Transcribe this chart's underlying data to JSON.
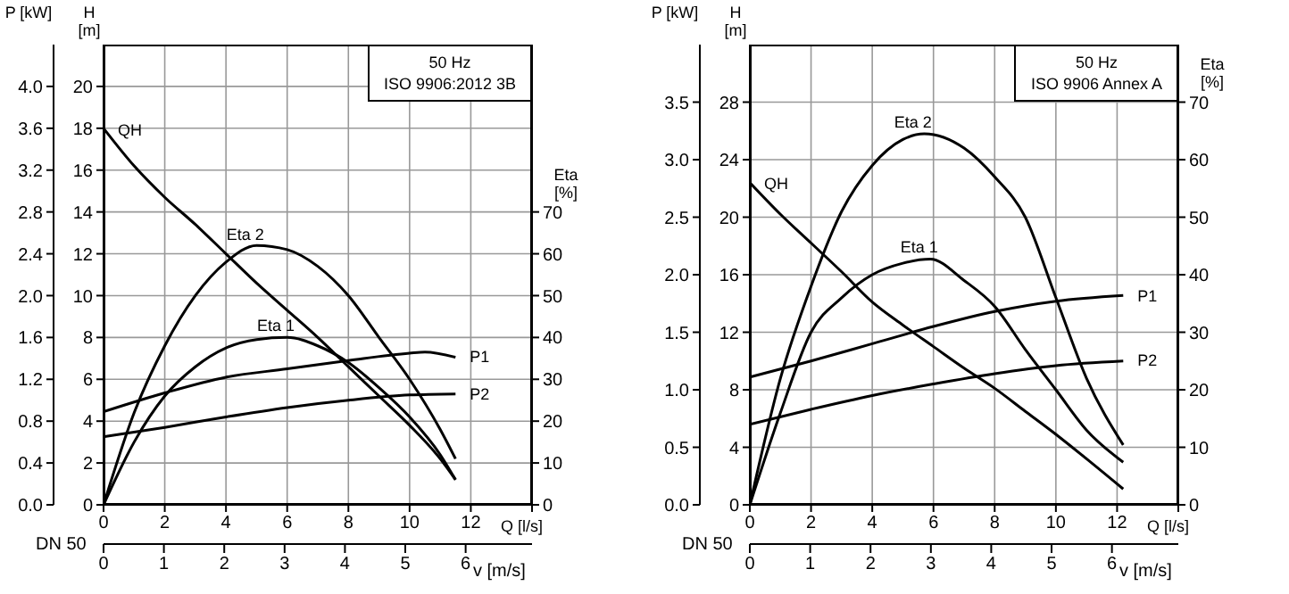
{
  "chart_data": [
    {
      "type": "line",
      "subtitle": "50 Hz",
      "annotations": [
        "ISO 9906:2012 3B",
        "DN 50"
      ],
      "xlabel": "Q [l/s]",
      "x2label": "v [m/s]",
      "ylabel": "H [m]",
      "y2label": "P [kW]",
      "y3label": "Eta [%]",
      "xlim": [
        0,
        14
      ],
      "xticks": [
        0,
        2,
        4,
        6,
        8,
        10,
        12,
        {
          "value": 14,
          "label": null
        }
      ],
      "x2lim": [
        0,
        7.1
      ],
      "x2ticks": [
        0,
        1,
        2,
        3,
        4,
        5,
        6
      ],
      "ylim": [
        0,
        22
      ],
      "yticks": [
        0,
        2,
        4,
        6,
        8,
        10,
        12,
        14,
        16,
        18,
        20
      ],
      "y2lim": [
        0,
        4.4
      ],
      "y2ticks": [
        {
          "value": 0,
          "label": "0.0"
        },
        {
          "value": 0.4,
          "label": "0.4"
        },
        {
          "value": 0.8,
          "label": "0.8"
        },
        {
          "value": 1.2,
          "label": "1.2"
        },
        {
          "value": 1.6,
          "label": "1.6"
        },
        {
          "value": 2,
          "label": "2.0"
        },
        {
          "value": 2.4,
          "label": "2.4"
        },
        {
          "value": 2.8,
          "label": "2.8"
        },
        {
          "value": 3.2,
          "label": "3.2"
        },
        {
          "value": 3.6,
          "label": "3.6"
        },
        {
          "value": 4,
          "label": "4.0"
        }
      ],
      "y3lim": [
        0,
        110
      ],
      "y3ticks": [
        0,
        10,
        20,
        30,
        40,
        50,
        60,
        70
      ],
      "grid": true,
      "series": [
        {
          "name": "QH",
          "color": "#000000",
          "axis": "y",
          "x": [
            0,
            1,
            2,
            3,
            4,
            5,
            6,
            7,
            8,
            9,
            10,
            11,
            11.5
          ],
          "values": [
            18,
            16.2,
            14.7,
            13.4,
            12,
            10.6,
            9.3,
            8,
            6.6,
            5.2,
            3.8,
            2.2,
            1.2
          ]
        },
        {
          "name": "Eta 1",
          "color": "#000000",
          "axis": "y3",
          "x": [
            0,
            1,
            2,
            3,
            4,
            5,
            6,
            7,
            8,
            9,
            10,
            11,
            11.5
          ],
          "values": [
            0,
            15,
            26,
            33,
            37.5,
            39.5,
            40,
            38,
            34,
            28,
            21,
            12,
            6
          ]
        },
        {
          "name": "Eta 2",
          "color": "#000000",
          "axis": "y3",
          "x": [
            0,
            1,
            2,
            3,
            4,
            5,
            6,
            7,
            8,
            9,
            10,
            11,
            11.5
          ],
          "values": [
            0,
            22,
            38,
            50,
            58,
            62,
            61,
            57,
            50,
            40,
            30,
            18,
            11
          ]
        },
        {
          "name": "P1",
          "color": "#000000",
          "axis": "y2",
          "x": [
            0,
            2,
            4,
            6,
            8,
            10,
            10.5,
            11.5
          ],
          "values": [
            0.89,
            1.07,
            1.22,
            1.3,
            1.38,
            1.45,
            1.46,
            1.41
          ]
        },
        {
          "name": "P2",
          "color": "#000000",
          "axis": "y2",
          "x": [
            0,
            2,
            4,
            6,
            8,
            10,
            11.5
          ],
          "values": [
            0.65,
            0.74,
            0.84,
            0.93,
            1,
            1.05,
            1.06
          ]
        }
      ]
    },
    {
      "type": "line",
      "subtitle": "50 Hz",
      "annotations": [
        "ISO 9906 Annex A",
        "DN 50"
      ],
      "xlabel": "Q [l/s]",
      "x2label": "v [m/s]",
      "ylabel": "H [m]",
      "y2label": "P [kW]",
      "y3label": "Eta [%]",
      "xlim": [
        0,
        14
      ],
      "xticks": [
        0,
        2,
        4,
        6,
        8,
        10,
        12,
        {
          "value": 14,
          "label": null
        }
      ],
      "x2lim": [
        0,
        7.1
      ],
      "x2ticks": [
        0,
        1,
        2,
        3,
        4,
        5,
        6
      ],
      "ylim": [
        0,
        32
      ],
      "yticks": [
        0,
        4,
        8,
        12,
        16,
        20,
        24,
        28
      ],
      "y2lim": [
        0,
        4
      ],
      "y2ticks": [
        {
          "value": 0,
          "label": "0.0"
        },
        {
          "value": 0.5,
          "label": "0.5"
        },
        {
          "value": 1,
          "label": "1.0"
        },
        {
          "value": 1.5,
          "label": "1.5"
        },
        {
          "value": 2,
          "label": "2.0"
        },
        {
          "value": 2.5,
          "label": "2.5"
        },
        {
          "value": 3,
          "label": "3.0"
        },
        {
          "value": 3.5,
          "label": "3.5"
        }
      ],
      "y3lim": [
        0,
        80
      ],
      "y3ticks": [
        0,
        10,
        20,
        30,
        40,
        50,
        60,
        70
      ],
      "grid": true,
      "series": [
        {
          "name": "QH",
          "color": "#000000",
          "axis": "y",
          "x": [
            0,
            1,
            2,
            3,
            4,
            5,
            6,
            7,
            8,
            9,
            10,
            11,
            12.2
          ],
          "values": [
            22.4,
            20.2,
            18.2,
            16.2,
            14.1,
            12.5,
            11,
            9.5,
            8.1,
            6.5,
            4.9,
            3.2,
            1.1
          ]
        },
        {
          "name": "Eta 1",
          "color": "#000000",
          "axis": "y3",
          "x": [
            0,
            1,
            2,
            3,
            4,
            5,
            5.9,
            7,
            8,
            9,
            10,
            11,
            12.2
          ],
          "values": [
            0,
            16,
            30,
            36,
            40,
            42,
            42.7,
            39,
            34.5,
            27,
            20,
            13,
            7.4
          ]
        },
        {
          "name": "Eta 2",
          "color": "#000000",
          "axis": "y3",
          "x": [
            0,
            1,
            2,
            3,
            4,
            5,
            5.7,
            7,
            8,
            9,
            10,
            11,
            12.2
          ],
          "values": [
            0,
            22,
            38,
            51,
            59,
            63.5,
            64.5,
            62,
            57,
            50,
            36,
            22,
            10.4
          ]
        },
        {
          "name": "P1",
          "color": "#000000",
          "axis": "y2",
          "x": [
            0,
            2,
            4,
            6,
            8,
            10,
            12.2
          ],
          "values": [
            1.11,
            1.25,
            1.4,
            1.55,
            1.68,
            1.77,
            1.82
          ]
        },
        {
          "name": "P2",
          "color": "#000000",
          "axis": "y2",
          "x": [
            0,
            2,
            4,
            6,
            8,
            10,
            12.2
          ],
          "values": [
            0.7,
            0.83,
            0.95,
            1.05,
            1.14,
            1.21,
            1.25
          ]
        }
      ]
    }
  ]
}
